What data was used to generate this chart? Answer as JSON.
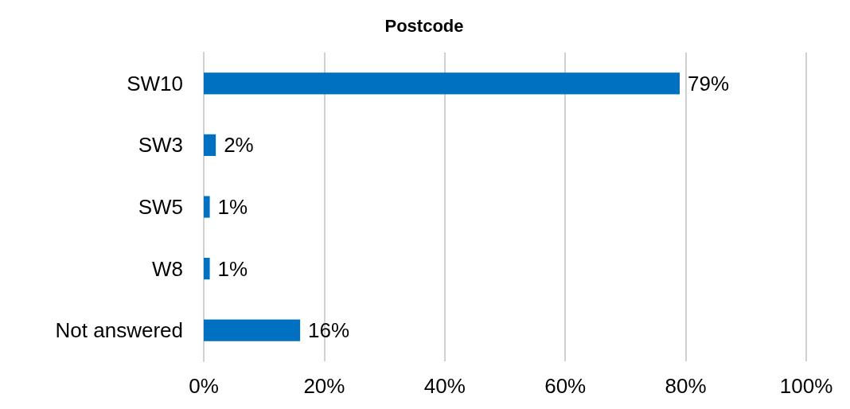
{
  "chart_data": {
    "type": "bar",
    "orientation": "horizontal",
    "title": "Postcode",
    "categories": [
      "SW10",
      "SW3",
      "SW5",
      "W8",
      "Not answered"
    ],
    "values": [
      79,
      2,
      1,
      1,
      16
    ],
    "value_labels": [
      "79%",
      "2%",
      "1%",
      "1%",
      "16%"
    ],
    "color": "#0070c0",
    "xlim": [
      0,
      100
    ],
    "xticks": [
      {
        "value": 0,
        "label": "0%"
      },
      {
        "value": 20,
        "label": "20%"
      },
      {
        "value": 40,
        "label": "40%"
      },
      {
        "value": 60,
        "label": "60%"
      },
      {
        "value": 80,
        "label": "80%"
      },
      {
        "value": 100,
        "label": "100%"
      }
    ],
    "grid": "x"
  }
}
